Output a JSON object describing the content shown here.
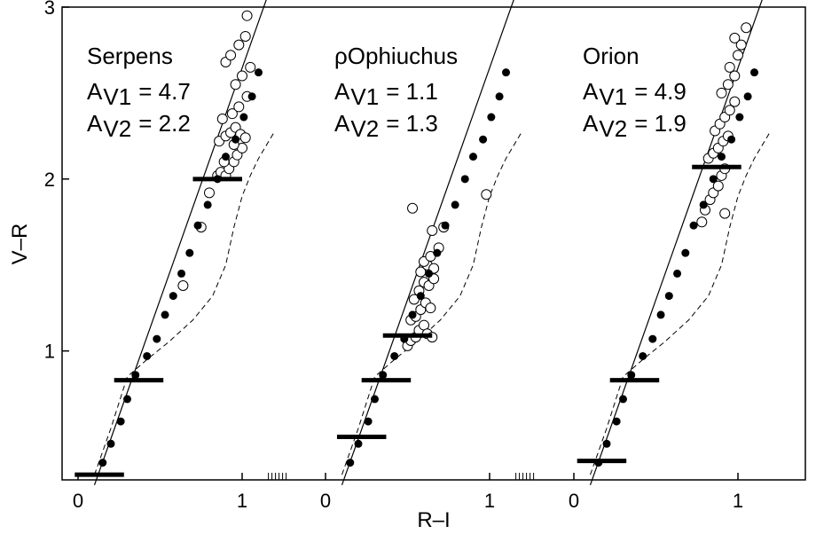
{
  "chart_data": {
    "type": "scatter",
    "xlabel": "R–I",
    "ylabel": "V–R",
    "xlim": [
      -0.08,
      1.5
    ],
    "ylim": [
      0.25,
      3.0
    ],
    "grid": false,
    "shared_y_axis": {
      "ticks": [
        1,
        2,
        3
      ],
      "tick_labels": [
        "1",
        "2",
        "3"
      ]
    },
    "x_ticks": [
      0,
      1
    ],
    "x_tick_labels": [
      "0",
      "1"
    ],
    "panels": [
      {
        "name": "Serpens",
        "annotations": [
          {
            "label": "A",
            "subscript": "V1",
            "value": "= 4.7"
          },
          {
            "label": "A",
            "subscript": "V2",
            "value": "= 2.2"
          }
        ],
        "reddening_line": {
          "x": [
            0.1,
            1.15
          ],
          "y": [
            0.22,
            3.05
          ]
        },
        "sequence_points": {
          "x": [
            0.15,
            0.2,
            0.26,
            0.3,
            0.35,
            0.42,
            0.48,
            0.53,
            0.58,
            0.63,
            0.68,
            0.73,
            0.79,
            0.85,
            0.9,
            0.96,
            1.01,
            1.06,
            1.1
          ],
          "y": [
            0.35,
            0.46,
            0.59,
            0.72,
            0.86,
            0.97,
            1.07,
            1.21,
            1.32,
            1.45,
            1.57,
            1.73,
            1.85,
            2.0,
            2.13,
            2.23,
            2.36,
            2.48,
            2.62
          ]
        },
        "open_points": {
          "x": [
            0.85,
            0.87,
            0.9,
            0.92,
            0.95,
            0.97,
            1.0,
            0.86,
            0.9,
            0.93,
            0.96,
            0.99,
            1.02,
            0.88,
            0.94,
            0.98,
            1.03,
            0.96,
            1.0,
            1.05,
            0.9,
            0.93,
            0.98,
            1.02,
            0.8,
            0.75,
            0.64,
            0.89,
            0.95,
            1.03
          ],
          "y": [
            2.02,
            2.04,
            2.02,
            2.06,
            2.1,
            2.14,
            2.18,
            2.22,
            2.25,
            2.27,
            2.3,
            2.26,
            2.24,
            2.35,
            2.38,
            2.42,
            2.48,
            2.55,
            2.6,
            2.65,
            2.68,
            2.72,
            2.78,
            2.83,
            1.92,
            1.72,
            1.38,
            2.1,
            2.2,
            2.95
          ]
        },
        "thick_bars": [
          {
            "x": [
              -0.02,
              0.28
            ],
            "y": 0.28
          },
          {
            "x": 0.22,
            "x2": 0.52,
            "y": 0.83
          },
          {
            "x": [
              0.7,
              1.0
            ],
            "y": 2.0
          }
        ],
        "dashed_curve": {
          "x": [
            0.1,
            0.2,
            0.3,
            0.42,
            0.55,
            0.7,
            0.82,
            0.9,
            0.95,
            1.0,
            1.05,
            1.1,
            1.2
          ],
          "y": [
            0.28,
            0.55,
            0.85,
            0.95,
            1.05,
            1.18,
            1.32,
            1.5,
            1.72,
            1.9,
            2.02,
            2.12,
            2.28
          ]
        }
      },
      {
        "name": "ρOphiuchus",
        "annotations": [
          {
            "label": "A",
            "subscript": "V1",
            "value": "= 1.1"
          },
          {
            "label": "A",
            "subscript": "V2",
            "value": "= 1.3"
          }
        ],
        "reddening_line": {
          "x": [
            0.1,
            1.15
          ],
          "y": [
            0.22,
            3.05
          ]
        },
        "sequence_points": {
          "x": [
            0.15,
            0.2,
            0.26,
            0.3,
            0.35,
            0.42,
            0.48,
            0.53,
            0.58,
            0.63,
            0.68,
            0.73,
            0.79,
            0.85,
            0.9,
            0.96,
            1.01,
            1.06,
            1.1
          ],
          "y": [
            0.35,
            0.46,
            0.59,
            0.72,
            0.86,
            0.97,
            1.07,
            1.21,
            1.32,
            1.45,
            1.57,
            1.73,
            1.85,
            2.0,
            2.13,
            2.23,
            2.36,
            2.48,
            2.62
          ]
        },
        "open_points": {
          "x": [
            0.5,
            0.52,
            0.55,
            0.57,
            0.6,
            0.62,
            0.65,
            0.52,
            0.55,
            0.58,
            0.61,
            0.64,
            0.54,
            0.57,
            0.6,
            0.63,
            0.66,
            0.58,
            0.62,
            0.66,
            0.6,
            0.64,
            0.69,
            0.72,
            0.65,
            0.53,
            0.98
          ],
          "y": [
            1.03,
            1.06,
            1.08,
            1.12,
            1.15,
            1.1,
            1.08,
            1.18,
            1.2,
            1.24,
            1.28,
            1.25,
            1.3,
            1.35,
            1.4,
            1.38,
            1.42,
            1.46,
            1.5,
            1.48,
            1.52,
            1.55,
            1.6,
            1.72,
            1.7,
            1.83,
            1.91
          ]
        },
        "thick_bars": [
          {
            "x": [
              0.07,
              0.37
            ],
            "y": 0.5
          },
          {
            "x": [
              0.22,
              0.52
            ],
            "y": 0.83
          },
          {
            "x": [
              0.35,
              0.65
            ],
            "y": 1.09
          }
        ],
        "dashed_curve": {
          "x": [
            0.1,
            0.2,
            0.3,
            0.42,
            0.55,
            0.7,
            0.82,
            0.9,
            0.95,
            1.0,
            1.05,
            1.1,
            1.2
          ],
          "y": [
            0.28,
            0.55,
            0.85,
            0.95,
            1.05,
            1.18,
            1.32,
            1.5,
            1.72,
            1.9,
            2.02,
            2.12,
            2.28
          ]
        }
      },
      {
        "name": "Orion",
        "annotations": [
          {
            "label": "A",
            "subscript": "V1",
            "value": "= 4.9"
          },
          {
            "label": "A",
            "subscript": "V2",
            "value": "= 1.9"
          }
        ],
        "reddening_line": {
          "x": [
            0.1,
            1.15
          ],
          "y": [
            0.22,
            3.05
          ]
        },
        "sequence_points": {
          "x": [
            0.15,
            0.2,
            0.26,
            0.3,
            0.35,
            0.42,
            0.48,
            0.53,
            0.58,
            0.63,
            0.68,
            0.73,
            0.79,
            0.85,
            0.9,
            0.96,
            1.01,
            1.06,
            1.1
          ],
          "y": [
            0.35,
            0.46,
            0.59,
            0.72,
            0.86,
            0.97,
            1.07,
            1.21,
            1.32,
            1.45,
            1.57,
            1.73,
            1.85,
            2.0,
            2.13,
            2.23,
            2.36,
            2.48,
            2.62
          ]
        },
        "open_points": {
          "x": [
            0.78,
            0.8,
            0.83,
            0.85,
            0.88,
            0.9,
            0.92,
            0.82,
            0.85,
            0.88,
            0.91,
            0.94,
            0.86,
            0.89,
            0.92,
            0.95,
            0.98,
            0.9,
            0.94,
            0.98,
            0.95,
            1.0,
            1.02,
            1.05,
            0.98,
            0.92
          ],
          "y": [
            1.75,
            1.82,
            1.88,
            1.92,
            1.96,
            2.02,
            2.06,
            2.12,
            2.15,
            2.18,
            2.22,
            2.25,
            2.28,
            2.32,
            2.36,
            2.4,
            2.45,
            2.5,
            2.55,
            2.6,
            2.65,
            2.72,
            2.78,
            2.88,
            2.82,
            1.8
          ]
        },
        "thick_bars": [
          {
            "x": [
              0.02,
              0.32
            ],
            "y": 0.36
          },
          {
            "x": [
              0.22,
              0.52
            ],
            "y": 0.83
          },
          {
            "x": [
              0.72,
              1.02
            ],
            "y": 2.07
          }
        ],
        "dashed_curve": {
          "x": [
            0.1,
            0.2,
            0.3,
            0.42,
            0.55,
            0.7,
            0.82,
            0.9,
            0.95,
            1.0,
            1.05,
            1.1,
            1.2
          ],
          "y": [
            0.28,
            0.55,
            0.85,
            0.95,
            1.05,
            1.18,
            1.32,
            1.5,
            1.72,
            1.9,
            2.02,
            2.12,
            2.28
          ]
        }
      }
    ]
  }
}
